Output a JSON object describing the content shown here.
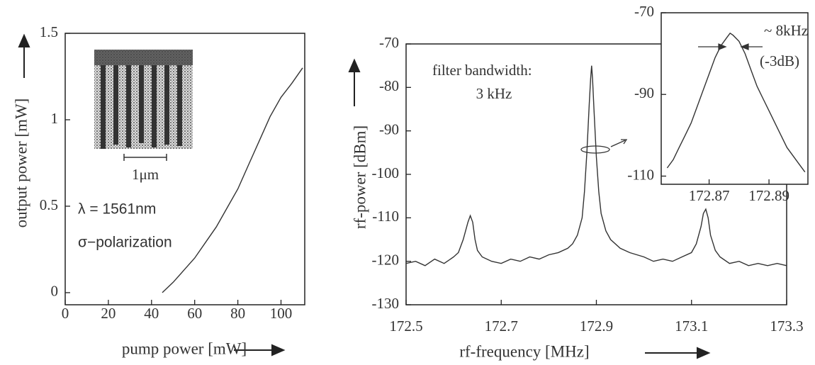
{
  "chart_data": [
    {
      "type": "line",
      "xlabel": "pump power [mW]",
      "ylabel": "output power [mW]",
      "xlim": [
        0,
        111
      ],
      "ylim": [
        -0.07,
        1.5
      ],
      "xticks": [
        0,
        20,
        40,
        60,
        80,
        100
      ],
      "yticks": [
        0,
        0.5,
        1,
        1.5
      ],
      "x": [
        45,
        50,
        55,
        60,
        65,
        70,
        75,
        80,
        85,
        90,
        95,
        100,
        105,
        110
      ],
      "values": [
        0,
        0.06,
        0.13,
        0.2,
        0.29,
        0.38,
        0.49,
        0.6,
        0.74,
        0.88,
        1.02,
        1.13,
        1.21,
        1.3
      ],
      "color": "#333333",
      "annotations": [
        "λ = 1561nm",
        "σ−polarization",
        "1μm"
      ]
    },
    {
      "type": "line",
      "xlabel": "rf-frequency [MHz]",
      "ylabel": "rf-power [dBm]",
      "xlim": [
        172.5,
        173.3
      ],
      "ylim": [
        -130,
        -70
      ],
      "xticks": [
        172.5,
        172.7,
        172.9,
        173.1,
        173.3
      ],
      "yticks": [
        -70,
        -80,
        -90,
        -100,
        -110,
        -120,
        -130
      ],
      "x": [
        172.5,
        172.52,
        172.54,
        172.56,
        172.58,
        172.6,
        172.61,
        172.62,
        172.63,
        172.635,
        172.64,
        172.645,
        172.65,
        172.66,
        172.68,
        172.7,
        172.72,
        172.74,
        172.76,
        172.78,
        172.8,
        172.82,
        172.84,
        172.85,
        172.86,
        172.87,
        172.875,
        172.88,
        172.885,
        172.888,
        172.89,
        172.892,
        172.895,
        172.9,
        172.905,
        172.91,
        172.92,
        172.93,
        172.95,
        172.97,
        173.0,
        173.02,
        173.04,
        173.06,
        173.08,
        173.1,
        173.11,
        173.12,
        173.125,
        173.13,
        173.135,
        173.14,
        173.15,
        173.16,
        173.18,
        173.2,
        173.22,
        173.24,
        173.26,
        173.28,
        173.3
      ],
      "values": [
        -120.5,
        -120,
        -121,
        -119.5,
        -120.5,
        -119,
        -118,
        -115,
        -111,
        -109.5,
        -111,
        -115,
        -117.5,
        -119,
        -120,
        -120.5,
        -119.5,
        -120,
        -119,
        -119.5,
        -118.5,
        -118,
        -117,
        -116,
        -114,
        -110,
        -104,
        -95,
        -84,
        -78,
        -75,
        -78,
        -85,
        -96,
        -104,
        -109,
        -113,
        -115,
        -117,
        -118,
        -119,
        -120,
        -119.5,
        -120,
        -119,
        -118,
        -116,
        -112,
        -109,
        -108,
        -110,
        -114,
        -117.5,
        -119,
        -120.5,
        -120,
        -121,
        -120.5,
        -121,
        -120.5,
        -121
      ],
      "color": "#333333",
      "annotations": [
        "filter bandwidth:",
        "3 kHz"
      ]
    },
    {
      "type": "line",
      "xlim": [
        172.854,
        172.903
      ],
      "ylim": [
        -112,
        -70
      ],
      "xticks": [
        172.87,
        172.89
      ],
      "yticks": [
        -70,
        -90,
        -110
      ],
      "x": [
        172.856,
        172.858,
        172.86,
        172.862,
        172.864,
        172.866,
        172.868,
        172.87,
        172.872,
        172.874,
        172.876,
        172.877,
        172.878,
        172.88,
        172.882,
        172.884,
        172.886,
        172.888,
        172.89,
        172.892,
        172.894,
        172.896,
        172.898,
        172.9,
        172.902
      ],
      "values": [
        -108,
        -106,
        -103,
        -100,
        -97,
        -93,
        -89,
        -85,
        -81,
        -78,
        -76,
        -75,
        -75.5,
        -77,
        -80,
        -84,
        -88,
        -91,
        -94,
        -97,
        -100,
        -103,
        -105,
        -107,
        -109
      ],
      "color": "#333333",
      "annotations": [
        "~ 8kHz",
        "(-3dB)"
      ]
    }
  ]
}
